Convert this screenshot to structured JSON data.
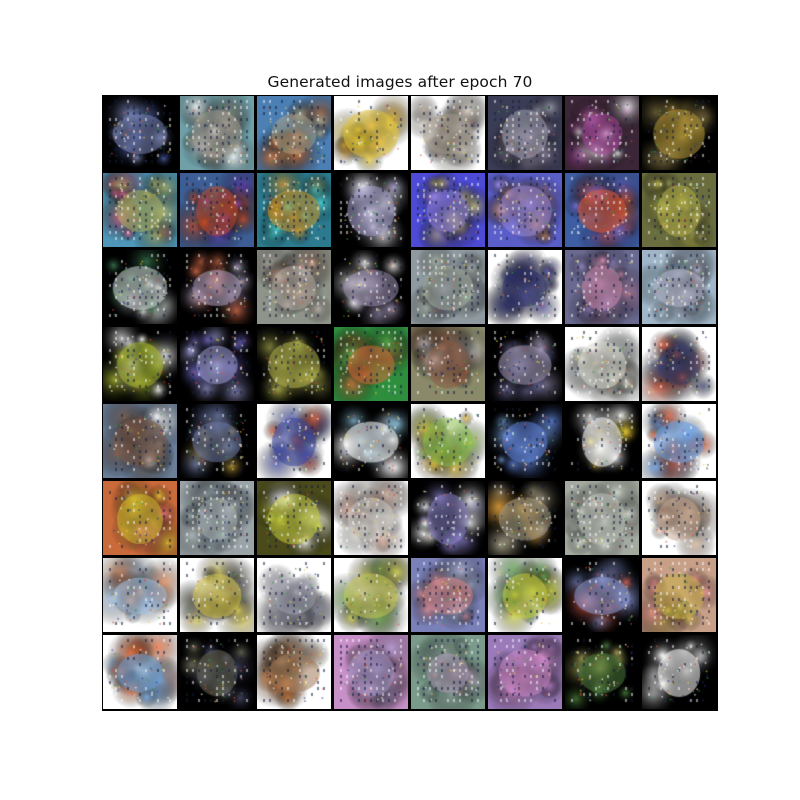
{
  "figure": {
    "title": "Generated images after epoch 70"
  },
  "grid": {
    "rows": 8,
    "cols": 8,
    "tiles": [
      {
        "bg": "#000000",
        "blobs": [
          "#7b86b8",
          "#4d5fa6"
        ],
        "hatch": 0.6
      },
      {
        "bg": "#6fa0a8",
        "blobs": [
          "#a19a8f",
          "#ffffff"
        ],
        "hatch": 0.7
      },
      {
        "bg": "#4c7fb4",
        "blobs": [
          "#a9a48a",
          "#d5743a"
        ],
        "hatch": 0.5
      },
      {
        "bg": "#ffffff",
        "blobs": [
          "#e3c63a",
          "#e2a93a"
        ],
        "hatch": 0.2
      },
      {
        "bg": "#ffffff",
        "blobs": [
          "#a59a8c",
          "#e0d8cc"
        ],
        "hatch": 0.6
      },
      {
        "bg": "#3b3d57",
        "blobs": [
          "#a6a4b4",
          "#8a7f9c"
        ],
        "hatch": 0.6
      },
      {
        "bg": "#3a2636",
        "blobs": [
          "#a7469a",
          "#ffffff"
        ],
        "hatch": 0.4
      },
      {
        "bg": "#000000",
        "blobs": [
          "#b69a3c",
          "#7a6b3e"
        ],
        "hatch": 0.5
      },
      {
        "bg": "#4f97b8",
        "blobs": [
          "#b3b25e",
          "#d05e8e"
        ],
        "hatch": 0.7
      },
      {
        "bg": "#3d5e94",
        "blobs": [
          "#c34a25",
          "#6a3ec0"
        ],
        "hatch": 0.5
      },
      {
        "bg": "#2b7a8e",
        "blobs": [
          "#d29a2e",
          "#4ed8d8"
        ],
        "hatch": 0.7
      },
      {
        "bg": "#000000",
        "blobs": [
          "#a8a2d0",
          "#ffffff"
        ],
        "hatch": 0.5
      },
      {
        "bg": "#4d4bd6",
        "blobs": [
          "#8f7fdc",
          "#c4bd5d"
        ],
        "hatch": 0.6
      },
      {
        "bg": "#5a5ec8",
        "blobs": [
          "#9a8ae0",
          "#cf8c4a"
        ],
        "hatch": 0.6
      },
      {
        "bg": "#3e5ea4",
        "blobs": [
          "#e35a32",
          "#7b6edb"
        ],
        "hatch": 0.5
      },
      {
        "bg": "#6a6e3e",
        "blobs": [
          "#b8b44a",
          "#8d8a54"
        ],
        "hatch": 0.6
      },
      {
        "bg": "#000000",
        "blobs": [
          "#d4d8d8",
          "#3c7a52"
        ],
        "hatch": 0.5
      },
      {
        "bg": "#000000",
        "blobs": [
          "#b1a0c0",
          "#d46b4a"
        ],
        "hatch": 0.5
      },
      {
        "bg": "#8f948a",
        "blobs": [
          "#b1a9a2",
          "#cfa48a"
        ],
        "hatch": 0.7
      },
      {
        "bg": "#000000",
        "blobs": [
          "#a296b8",
          "#ffffff"
        ],
        "hatch": 0.4
      },
      {
        "bg": "#8f9aa0",
        "blobs": [
          "#a8b2a4",
          "#7b7fa0"
        ],
        "hatch": 0.7
      },
      {
        "bg": "#ffffff",
        "blobs": [
          "#2a2e66",
          "#5b59a8"
        ],
        "hatch": 0.3
      },
      {
        "bg": "#6a6a90",
        "blobs": [
          "#d08cb0",
          "#8c7db8"
        ],
        "hatch": 0.6
      },
      {
        "bg": "#a0b6c8",
        "blobs": [
          "#b8b6cc",
          "#8fa8b8"
        ],
        "hatch": 0.7
      },
      {
        "bg": "#000000",
        "blobs": [
          "#a8b830",
          "#ffffff"
        ],
        "hatch": 0.4
      },
      {
        "bg": "#000000",
        "blobs": [
          "#a0a0d8",
          "#6a62b8"
        ],
        "hatch": 0.4
      },
      {
        "bg": "#000000",
        "blobs": [
          "#b4b44e",
          "#7a7a3a"
        ],
        "hatch": 0.5
      },
      {
        "bg": "#2e8e3e",
        "blobs": [
          "#d46c3a",
          "#4ab04c"
        ],
        "hatch": 0.5
      },
      {
        "bg": "#8a8a6a",
        "blobs": [
          "#8a5a42",
          "#ffffff"
        ],
        "hatch": 0.4
      },
      {
        "bg": "#000000",
        "blobs": [
          "#a49ab8",
          "#6e6a98"
        ],
        "hatch": 0.4
      },
      {
        "bg": "#ffffff",
        "blobs": [
          "#d8d8cc",
          "#9ea4a0"
        ],
        "hatch": 0.5
      },
      {
        "bg": "#ffffff",
        "blobs": [
          "#3a3e6a",
          "#e05a3a"
        ],
        "hatch": 0.3
      },
      {
        "bg": "#6a7e98",
        "blobs": [
          "#7a5a48",
          "#ffffff"
        ],
        "hatch": 0.5
      },
      {
        "bg": "#000000",
        "blobs": [
          "#6a78a8",
          "#c0a040"
        ],
        "hatch": 0.4
      },
      {
        "bg": "#ffffff",
        "blobs": [
          "#3a46a0",
          "#e0603a"
        ],
        "hatch": 0.3
      },
      {
        "bg": "#000000",
        "blobs": [
          "#ffffff",
          "#8abed8"
        ],
        "hatch": 0.3
      },
      {
        "bg": "#ffffff",
        "blobs": [
          "#8cc04a",
          "#d0b03a"
        ],
        "hatch": 0.4
      },
      {
        "bg": "#000000",
        "blobs": [
          "#5e80d8",
          "#7aa0d8"
        ],
        "hatch": 0.5
      },
      {
        "bg": "#000000",
        "blobs": [
          "#ffffff",
          "#d8c032"
        ],
        "hatch": 0.3
      },
      {
        "bg": "#ffffff",
        "blobs": [
          "#6aa0e8",
          "#e0603a"
        ],
        "hatch": 0.4
      },
      {
        "bg": "#c86a3a",
        "blobs": [
          "#d8c030",
          "#e07080"
        ],
        "hatch": 0.3
      },
      {
        "bg": "#9aa4a8",
        "blobs": [
          "#aab4b8",
          "#8ea0a8"
        ],
        "hatch": 0.7
      },
      {
        "bg": "#4a4a1a",
        "blobs": [
          "#c8d040",
          "#ffffff"
        ],
        "hatch": 0.4
      },
      {
        "bg": "#ffffff",
        "blobs": [
          "#d0ccc4",
          "#d8b0a0"
        ],
        "hatch": 0.5
      },
      {
        "bg": "#000000",
        "blobs": [
          "#8a82c8",
          "#ffffff"
        ],
        "hatch": 0.4
      },
      {
        "bg": "#000000",
        "blobs": [
          "#a8a088",
          "#d89a3a"
        ],
        "hatch": 0.5
      },
      {
        "bg": "#a4aaa0",
        "blobs": [
          "#c0c4bc",
          "#d0d8cc"
        ],
        "hatch": 0.7
      },
      {
        "bg": "#ffffff",
        "blobs": [
          "#c8a890",
          "#e0c8b8"
        ],
        "hatch": 0.5
      },
      {
        "bg": "#ffffff",
        "blobs": [
          "#a4c4e8",
          "#e08a5a"
        ],
        "hatch": 0.3
      },
      {
        "bg": "#ffffff",
        "blobs": [
          "#d8c850",
          "#3a3a2a"
        ],
        "hatch": 0.3
      },
      {
        "bg": "#ffffff",
        "blobs": [
          "#a0a0b0",
          "#8a8a9a"
        ],
        "hatch": 0.5
      },
      {
        "bg": "#ffffff",
        "blobs": [
          "#c8c858",
          "#6a9a4a"
        ],
        "hatch": 0.2
      },
      {
        "bg": "#7a80b8",
        "blobs": [
          "#d8888a",
          "#b8c0e0"
        ],
        "hatch": 0.6
      },
      {
        "bg": "#ffffff",
        "blobs": [
          "#c8d040",
          "#5a9a4a"
        ],
        "hatch": 0.3
      },
      {
        "bg": "#000000",
        "blobs": [
          "#8a9ad8",
          "#d05a4a"
        ],
        "hatch": 0.4
      },
      {
        "bg": "#c8a088",
        "blobs": [
          "#c8b04a",
          "#e08a8a"
        ],
        "hatch": 0.6
      },
      {
        "bg": "#ffffff",
        "blobs": [
          "#6aa0d8",
          "#e06a3a"
        ],
        "hatch": 0.3
      },
      {
        "bg": "#000000",
        "blobs": [
          "#6a6a5a",
          "#4a4a6a"
        ],
        "hatch": 0.4
      },
      {
        "bg": "#ffffff",
        "blobs": [
          "#a07a5a",
          "#d8803a"
        ],
        "hatch": 0.4
      },
      {
        "bg": "#c890c8",
        "blobs": [
          "#a898c8",
          "#b890b8"
        ],
        "hatch": 0.7
      },
      {
        "bg": "#7a9a8a",
        "blobs": [
          "#b0a0b8",
          "#8aa09a"
        ],
        "hatch": 0.7
      },
      {
        "bg": "#9a7ab8",
        "blobs": [
          "#d08ac8",
          "#8a6aa8"
        ],
        "hatch": 0.5
      },
      {
        "bg": "#000000",
        "blobs": [
          "#4a7a3a",
          "#a8a85a"
        ],
        "hatch": 0.4
      },
      {
        "bg": "#000000",
        "blobs": [
          "#ffffff",
          "#a0a0a0"
        ],
        "hatch": 0.3
      }
    ]
  }
}
